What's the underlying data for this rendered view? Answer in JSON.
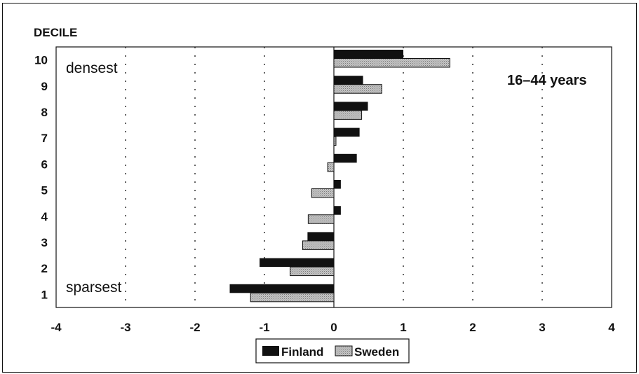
{
  "chart_data": {
    "type": "bar",
    "orientation": "horizontal",
    "ylabel": "DECILE",
    "categories": [
      "1",
      "2",
      "3",
      "4",
      "5",
      "6",
      "7",
      "8",
      "9",
      "10"
    ],
    "series": [
      {
        "name": "Finland",
        "color": "#111111",
        "values": [
          -1.5,
          -1.07,
          -0.38,
          0.1,
          0.1,
          0.33,
          0.37,
          0.49,
          0.42,
          1.0
        ]
      },
      {
        "name": "Sweden",
        "color": "#b5b5b5",
        "values": [
          -1.2,
          -0.63,
          -0.45,
          -0.37,
          -0.32,
          -0.09,
          0.03,
          0.4,
          0.69,
          1.67
        ]
      }
    ],
    "xlim": [
      -4,
      4
    ],
    "xticks": [
      "-4",
      "-3",
      "-2",
      "-1",
      "0",
      "1",
      "2",
      "3",
      "4"
    ],
    "grid": "vertical dotted",
    "legend": "bottom-center",
    "annotations": {
      "top": "densest",
      "bottom": "sparsest",
      "panel": "16–44 years"
    }
  }
}
